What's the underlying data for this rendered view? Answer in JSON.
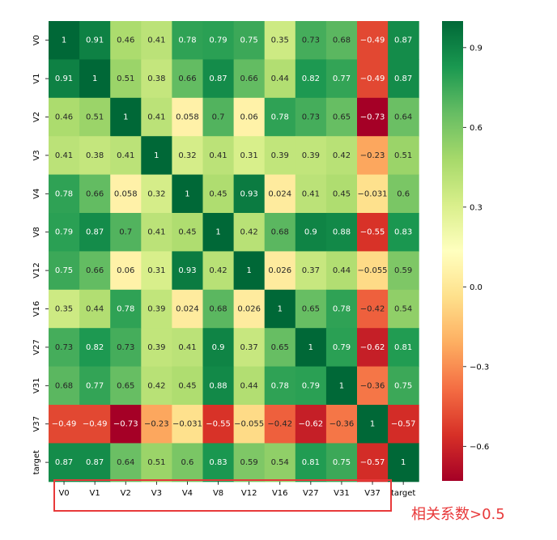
{
  "chart_data": {
    "type": "heatmap",
    "title": "",
    "xlabel": "",
    "ylabel": "",
    "labels": [
      "V0",
      "V1",
      "V2",
      "V3",
      "V4",
      "V8",
      "V12",
      "V16",
      "V27",
      "V31",
      "V37",
      "target"
    ],
    "values": [
      [
        1,
        0.91,
        0.46,
        0.41,
        0.78,
        0.79,
        0.75,
        0.35,
        0.73,
        0.68,
        -0.49,
        0.87
      ],
      [
        0.91,
        1,
        0.51,
        0.38,
        0.66,
        0.87,
        0.66,
        0.44,
        0.82,
        0.77,
        -0.49,
        0.87
      ],
      [
        0.46,
        0.51,
        1,
        0.41,
        0.058,
        0.7,
        0.06,
        0.78,
        0.73,
        0.65,
        -0.73,
        0.64
      ],
      [
        0.41,
        0.38,
        0.41,
        1,
        0.32,
        0.41,
        0.31,
        0.39,
        0.39,
        0.42,
        -0.23,
        0.51
      ],
      [
        0.78,
        0.66,
        0.058,
        0.32,
        1,
        0.45,
        0.93,
        0.024,
        0.41,
        0.45,
        -0.031,
        0.6
      ],
      [
        0.79,
        0.87,
        0.7,
        0.41,
        0.45,
        1,
        0.42,
        0.68,
        0.9,
        0.88,
        -0.55,
        0.83
      ],
      [
        0.75,
        0.66,
        0.06,
        0.31,
        0.93,
        0.42,
        1,
        0.026,
        0.37,
        0.44,
        -0.055,
        0.59
      ],
      [
        0.35,
        0.44,
        0.78,
        0.39,
        0.024,
        0.68,
        0.026,
        1,
        0.65,
        0.78,
        -0.42,
        0.54
      ],
      [
        0.73,
        0.82,
        0.73,
        0.39,
        0.41,
        0.9,
        0.37,
        0.65,
        1,
        0.79,
        -0.62,
        0.81
      ],
      [
        0.68,
        0.77,
        0.65,
        0.42,
        0.45,
        0.88,
        0.44,
        0.78,
        0.79,
        1,
        -0.36,
        0.75
      ],
      [
        -0.49,
        -0.49,
        -0.73,
        -0.23,
        -0.031,
        -0.55,
        -0.055,
        -0.42,
        -0.62,
        -0.36,
        1,
        -0.57
      ],
      [
        0.87,
        0.87,
        0.64,
        0.51,
        0.6,
        0.83,
        0.59,
        0.54,
        0.81,
        0.75,
        -0.57,
        1
      ]
    ],
    "colormap": "RdYlGn",
    "vmin": -0.73,
    "vmax": 1,
    "colorbar_ticks": [
      "0.9",
      "0.6",
      "0.3",
      "0.0",
      "−0.3",
      "−0.6"
    ],
    "colorbar_tick_values": [
      0.9,
      0.6,
      0.3,
      0.0,
      -0.3,
      -0.6
    ],
    "annotations": [
      "相关系数>0.5"
    ],
    "highlight_color": "#e8393a"
  }
}
